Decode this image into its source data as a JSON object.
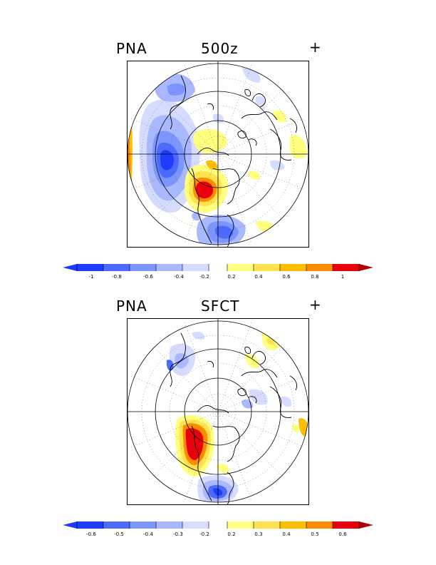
{
  "panels": [
    {
      "index": "PNA",
      "variable": "500z",
      "sign": "+",
      "colorbar_ticks": [
        "-1",
        "-0.8",
        "-0.6",
        "-0.4",
        "-0.2",
        "0.2",
        "0.4",
        "0.6",
        "0.8",
        "1"
      ]
    },
    {
      "index": "PNA",
      "variable": "SFCT",
      "sign": "+",
      "colorbar_ticks": [
        "-0.6",
        "-0.5",
        "-0.4",
        "-0.3",
        "-0.2",
        "0.2",
        "0.3",
        "0.4",
        "0.5",
        "0.6"
      ]
    }
  ],
  "colors": {
    "neg_strong": "#1e3cff",
    "neg_mid": "#4d6aff",
    "neg_light": "#7d96ff",
    "neg_pale": "#aab8ff",
    "neg_faint": "#d6dcff",
    "pos_faint": "#ffff80",
    "pos_pale": "#ffe24d",
    "pos_light": "#ffbf00",
    "pos_mid": "#ff8c00",
    "pos_strong": "#e8000b",
    "pos_dark": "#b40000"
  }
}
